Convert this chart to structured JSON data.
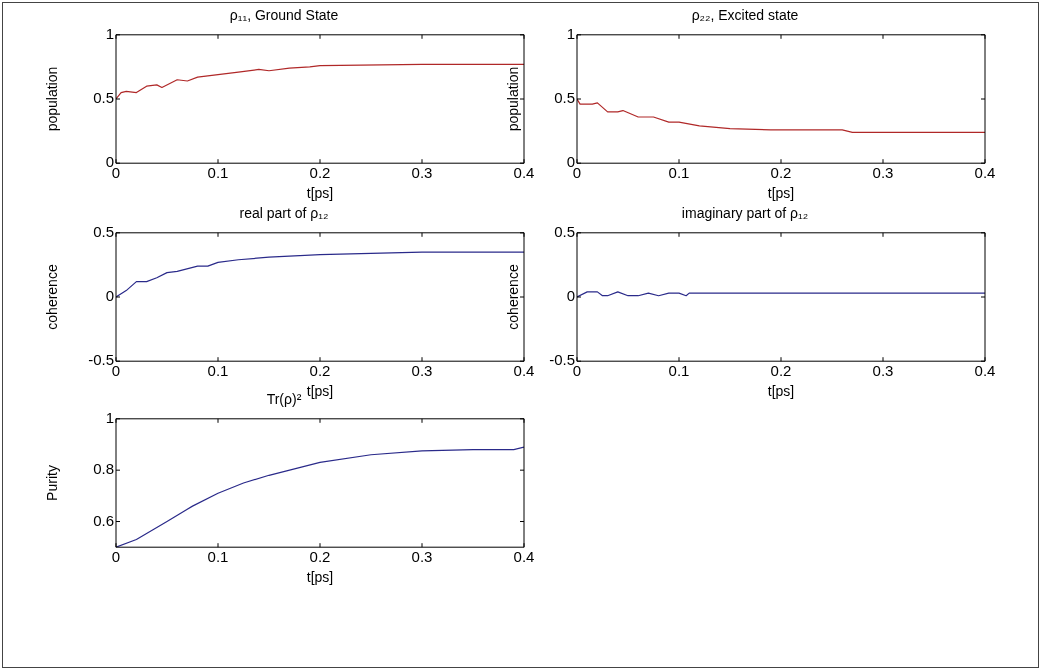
{
  "chart_data": [
    {
      "type": "line",
      "title": "ρ₁₁, Ground State",
      "xlabel": "t[ps]",
      "ylabel": "population",
      "color": "#b02828",
      "xlim": [
        0,
        0.4
      ],
      "xticks": [
        0,
        0.1,
        0.2,
        0.3,
        0.4
      ],
      "ylim": [
        0,
        1
      ],
      "yticks": [
        0,
        0.5,
        1
      ],
      "grid": false,
      "legend": false,
      "marker": "none",
      "line_style": "solid",
      "x": [
        0,
        0.005,
        0.01,
        0.02,
        0.03,
        0.04,
        0.045,
        0.06,
        0.07,
        0.08,
        0.1,
        0.12,
        0.14,
        0.15,
        0.17,
        0.19,
        0.2,
        0.3,
        0.4
      ],
      "values": [
        0.5,
        0.55,
        0.56,
        0.55,
        0.6,
        0.61,
        0.59,
        0.65,
        0.64,
        0.67,
        0.69,
        0.71,
        0.73,
        0.72,
        0.74,
        0.75,
        0.76,
        0.77,
        0.77
      ]
    },
    {
      "type": "line",
      "title": "ρ₂₂, Excited state",
      "xlabel": "t[ps]",
      "ylabel": "population",
      "color": "#b02828",
      "xlim": [
        0,
        0.4
      ],
      "xticks": [
        0,
        0.1,
        0.2,
        0.3,
        0.4
      ],
      "ylim": [
        0,
        1
      ],
      "yticks": [
        0,
        0.5,
        1
      ],
      "grid": false,
      "legend": false,
      "marker": "none",
      "line_style": "solid",
      "x": [
        0,
        0.003,
        0.015,
        0.02,
        0.03,
        0.04,
        0.045,
        0.06,
        0.075,
        0.09,
        0.1,
        0.12,
        0.15,
        0.19,
        0.25,
        0.26,
        0.27,
        0.4
      ],
      "values": [
        0.5,
        0.46,
        0.46,
        0.47,
        0.4,
        0.4,
        0.41,
        0.36,
        0.36,
        0.32,
        0.32,
        0.29,
        0.27,
        0.26,
        0.26,
        0.26,
        0.24,
        0.24
      ]
    },
    {
      "type": "line",
      "title": "real part of ρ₁₂",
      "xlabel": "t[ps]",
      "ylabel": "coherence",
      "color": "#2a2a8a",
      "xlim": [
        0,
        0.4
      ],
      "xticks": [
        0,
        0.1,
        0.2,
        0.3,
        0.4
      ],
      "ylim": [
        -0.5,
        0.5
      ],
      "yticks": [
        -0.5,
        0,
        0.5
      ],
      "grid": false,
      "legend": false,
      "marker": "none",
      "line_style": "solid",
      "x": [
        0,
        0.01,
        0.02,
        0.03,
        0.04,
        0.05,
        0.06,
        0.08,
        0.09,
        0.1,
        0.12,
        0.15,
        0.2,
        0.3,
        0.4
      ],
      "values": [
        0,
        0.05,
        0.12,
        0.12,
        0.15,
        0.19,
        0.2,
        0.24,
        0.24,
        0.27,
        0.29,
        0.31,
        0.33,
        0.35,
        0.35
      ]
    },
    {
      "type": "line",
      "title": "imaginary part of ρ₁₂",
      "xlabel": "t[ps]",
      "ylabel": "coherence",
      "color": "#2a2a8a",
      "xlim": [
        0,
        0.4
      ],
      "xticks": [
        0,
        0.1,
        0.2,
        0.3,
        0.4
      ],
      "ylim": [
        -0.5,
        0.5
      ],
      "yticks": [
        -0.5,
        0,
        0.5
      ],
      "grid": false,
      "legend": false,
      "marker": "none",
      "line_style": "solid",
      "x": [
        0,
        0.01,
        0.02,
        0.025,
        0.03,
        0.04,
        0.05,
        0.06,
        0.07,
        0.08,
        0.09,
        0.1,
        0.107,
        0.11,
        0.4
      ],
      "values": [
        0,
        0.04,
        0.04,
        0.01,
        0.01,
        0.04,
        0.01,
        0.01,
        0.03,
        0.01,
        0.03,
        0.03,
        0.01,
        0.03,
        0.03
      ]
    },
    {
      "type": "line",
      "title": "Tr(ρ)²",
      "xlabel": "t[ps]",
      "ylabel": "Purity",
      "color": "#2a2a8a",
      "xlim": [
        0,
        0.4
      ],
      "xticks": [
        0,
        0.1,
        0.2,
        0.3,
        0.4
      ],
      "ylim": [
        0.5,
        1
      ],
      "yticks": [
        0.6,
        0.8,
        1
      ],
      "grid": false,
      "legend": false,
      "marker": "none",
      "line_style": "solid",
      "x": [
        0,
        0.02,
        0.05,
        0.075,
        0.1,
        0.125,
        0.15,
        0.2,
        0.25,
        0.3,
        0.35,
        0.39,
        0.4
      ],
      "values": [
        0.5,
        0.53,
        0.6,
        0.66,
        0.71,
        0.75,
        0.78,
        0.83,
        0.86,
        0.875,
        0.88,
        0.88,
        0.89
      ]
    }
  ]
}
